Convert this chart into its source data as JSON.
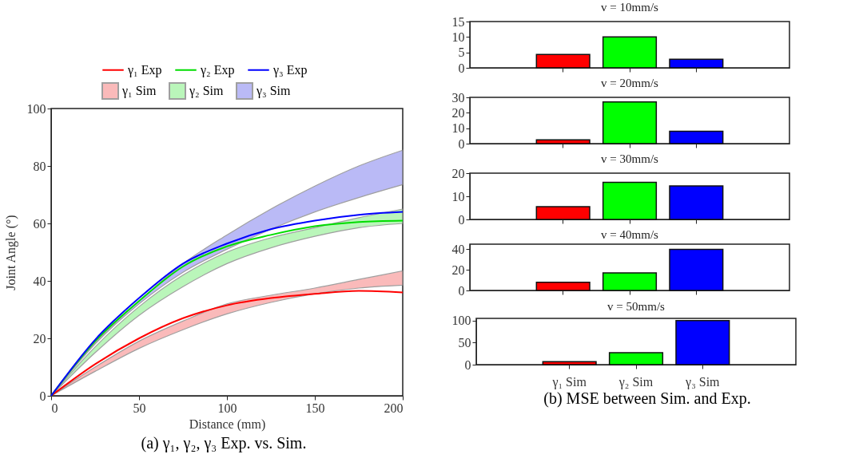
{
  "chart_data": [
    {
      "type": "line",
      "xlabel": "Distance (mm)",
      "ylabel": "Joint Angle (°)",
      "x": [
        0,
        25,
        50,
        75,
        100,
        125,
        150,
        175,
        200
      ],
      "xlim": [
        0,
        200
      ],
      "xticks": [
        0,
        50,
        100,
        150,
        200
      ],
      "ylim": [
        0,
        100
      ],
      "yticks": [
        0,
        20,
        40,
        60,
        80,
        100
      ],
      "legend": "top",
      "annotations": [
        "(a) γ₁, γ₂, γ₃ Exp. vs. Sim."
      ],
      "series": [
        {
          "name": "γ₁ Exp",
          "color": "#ff0000",
          "values": [
            0,
            11,
            20,
            27,
            31.5,
            34,
            35.5,
            36.5,
            36
          ]
        },
        {
          "name": "γ₂ Exp",
          "color": "#00dd00",
          "values": [
            0,
            19,
            33,
            45,
            52,
            56,
            59,
            60.5,
            61
          ]
        },
        {
          "name": "γ₃ Exp",
          "color": "#0000ff",
          "values": [
            0,
            19.5,
            34,
            46,
            53,
            58,
            61,
            63,
            64
          ]
        },
        {
          "name": "γ₁ Sim",
          "type": "area",
          "color": "#f9a9a9",
          "values": [
            null,
            null,
            null,
            null,
            null,
            null,
            null,
            null,
            null
          ],
          "lower": [
            0,
            8.5,
            16.5,
            23,
            28.5,
            32.5,
            35.5,
            37.5,
            38.5
          ],
          "upper": [
            0,
            10,
            19,
            26,
            32,
            35,
            37.5,
            40.5,
            43.5
          ]
        },
        {
          "name": "γ₂ Sim",
          "type": "area",
          "color": "#a9f5a9",
          "values": [
            null,
            null,
            null,
            null,
            null,
            null,
            null,
            null,
            null
          ],
          "lower": [
            0,
            15,
            28,
            38,
            46,
            51.5,
            55.5,
            58.5,
            60
          ],
          "upper": [
            0,
            17,
            31,
            42,
            50,
            55,
            58.5,
            62,
            65
          ]
        },
        {
          "name": "γ₃ Sim",
          "type": "area",
          "color": "#a9a9f5",
          "values": [
            null,
            null,
            null,
            null,
            null,
            null,
            null,
            null,
            null
          ],
          "lower": [
            0,
            18,
            32,
            43,
            51,
            58,
            64,
            69,
            73.5
          ],
          "upper": [
            0,
            18.5,
            33,
            46,
            56,
            65,
            73,
            80,
            85.5
          ]
        }
      ]
    },
    {
      "type": "bar",
      "title": "v = 10mm/s",
      "categories": [
        null,
        null,
        null
      ],
      "values": [
        4.3,
        10,
        2.8
      ],
      "colors": [
        "#ff0000",
        "#00ff00",
        "#0000ff"
      ],
      "ylim": [
        0,
        15
      ],
      "yticks": [
        0,
        5,
        10,
        15
      ],
      "tick_labels": "y"
    },
    {
      "type": "bar",
      "title": "v = 20mm/s",
      "categories": [
        null,
        null,
        null
      ],
      "values": [
        2.5,
        27,
        8
      ],
      "colors": [
        "#ff0000",
        "#00ff00",
        "#0000ff"
      ],
      "ylim": [
        0,
        30
      ],
      "yticks": [
        0,
        10,
        20,
        30
      ],
      "tick_labels": "y"
    },
    {
      "type": "bar",
      "title": "v = 30mm/s",
      "categories": [
        null,
        null,
        null
      ],
      "values": [
        5.5,
        16,
        14.5
      ],
      "colors": [
        "#ff0000",
        "#00ff00",
        "#0000ff"
      ],
      "ylim": [
        0,
        20
      ],
      "yticks": [
        0,
        10,
        20
      ],
      "tick_labels": "y"
    },
    {
      "type": "bar",
      "title": "v = 40mm/s",
      "categories": [
        null,
        null,
        null
      ],
      "values": [
        8,
        17,
        40
      ],
      "colors": [
        "#ff0000",
        "#00ff00",
        "#0000ff"
      ],
      "ylim": [
        0,
        45
      ],
      "yticks": [
        0,
        20,
        40
      ],
      "tick_labels": "y"
    },
    {
      "type": "bar",
      "title": "v = 50mm/s",
      "categories": [
        "γ₁ Sim",
        "γ₂ Sim",
        "γ₃ Sim"
      ],
      "values": [
        7,
        27,
        100
      ],
      "colors": [
        "#ff0000",
        "#00ff00",
        "#0000ff"
      ],
      "ylim": [
        0,
        105
      ],
      "yticks": [
        0,
        50,
        100
      ],
      "annotations": [
        "(b) MSE between Sim. and Exp."
      ]
    }
  ]
}
